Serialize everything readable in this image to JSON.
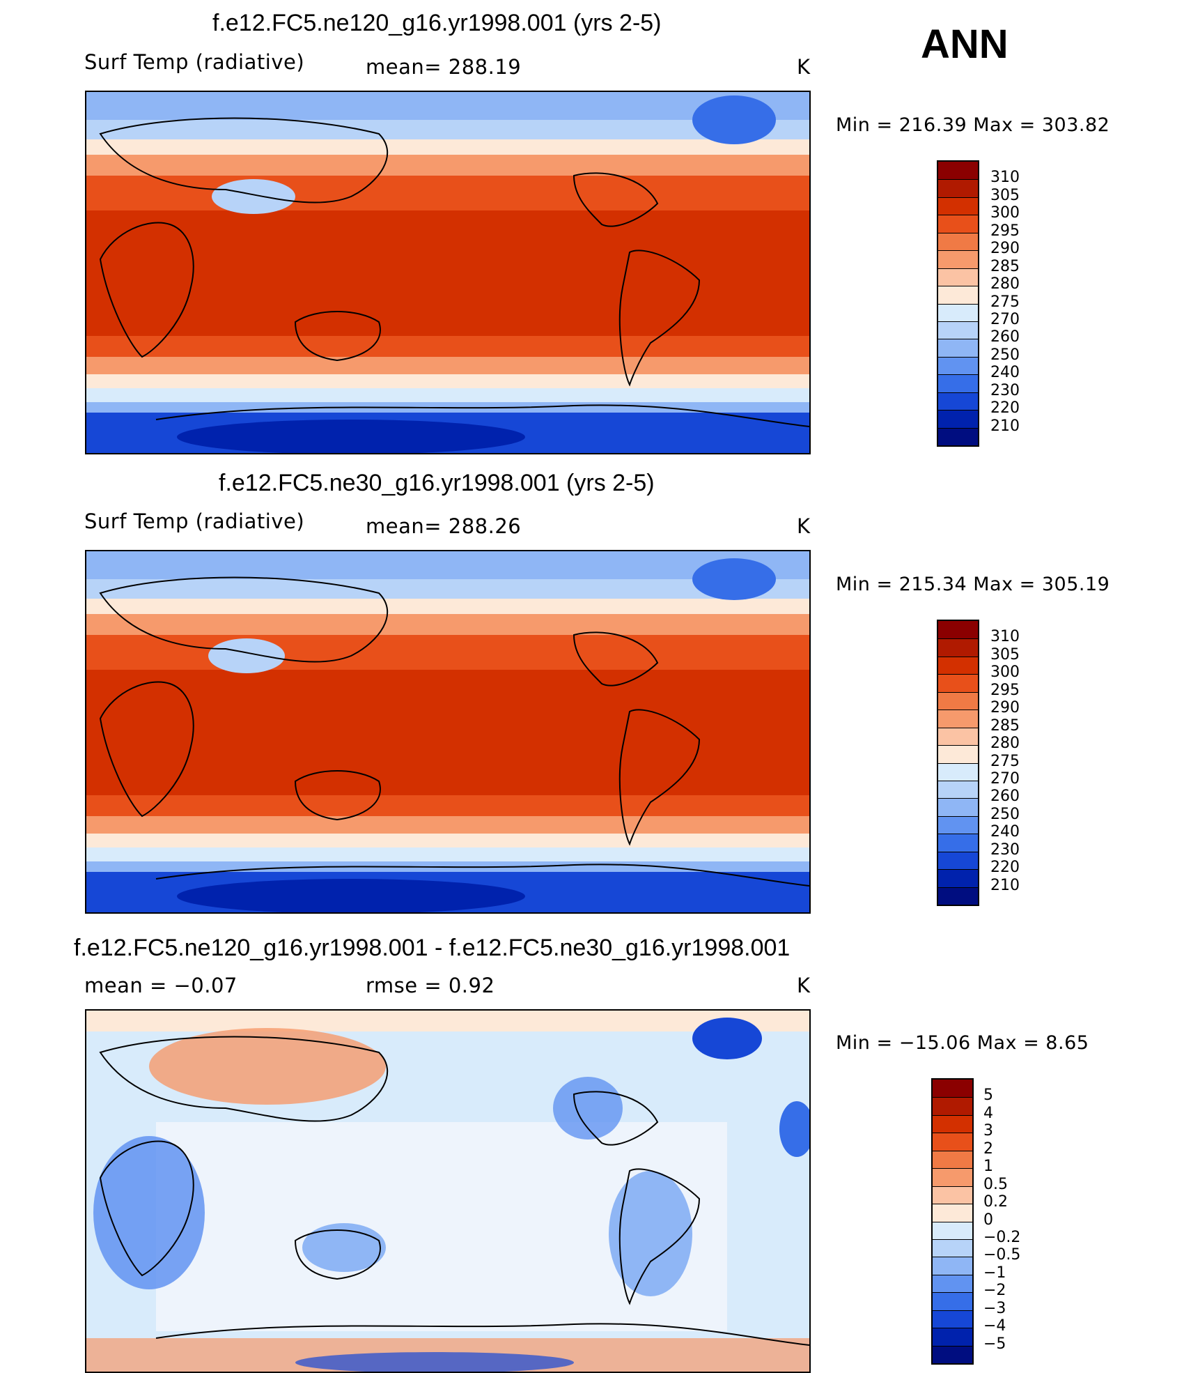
{
  "season": "ANN",
  "panels": [
    {
      "title": "f.e12.FC5.ne120_g16.yr1998.001 (yrs 2-5)",
      "left_label": "Surf Temp (radiative)",
      "center_label": "mean=  288.19",
      "units": "K",
      "minmax": "Min  =  216.39  Max  =  303.82",
      "colorbar": {
        "labels": [
          "310",
          "305",
          "300",
          "295",
          "290",
          "285",
          "280",
          "275",
          "270",
          "260",
          "250",
          "240",
          "230",
          "220",
          "210"
        ],
        "colors": [
          "#8b0000",
          "#b01a00",
          "#d33000",
          "#e8501a",
          "#f07a45",
          "#f69a6c",
          "#fbc3a4",
          "#fde9d8",
          "#d8ebfb",
          "#b7d3f8",
          "#8fb6f5",
          "#6193f1",
          "#366ee8",
          "#1647d6",
          "#0022ad",
          "#000d80"
        ]
      },
      "map_kind": "temperature"
    },
    {
      "title": "f.e12.FC5.ne30_g16.yr1998.001 (yrs 2-5)",
      "left_label": "Surf Temp (radiative)",
      "center_label": "mean=  288.26",
      "units": "K",
      "minmax": "Min  =  215.34  Max  =  305.19",
      "colorbar": {
        "labels": [
          "310",
          "305",
          "300",
          "295",
          "290",
          "285",
          "280",
          "275",
          "270",
          "260",
          "250",
          "240",
          "230",
          "220",
          "210"
        ],
        "colors": [
          "#8b0000",
          "#b01a00",
          "#d33000",
          "#e8501a",
          "#f07a45",
          "#f69a6c",
          "#fbc3a4",
          "#fde9d8",
          "#d8ebfb",
          "#b7d3f8",
          "#8fb6f5",
          "#6193f1",
          "#366ee8",
          "#1647d6",
          "#0022ad",
          "#000d80"
        ]
      },
      "map_kind": "temperature"
    },
    {
      "title": "f.e12.FC5.ne120_g16.yr1998.001 - f.e12.FC5.ne30_g16.yr1998.001",
      "left_label": "mean  =    −0.07",
      "center_label": "rmse  =      0.92",
      "units": "K",
      "minmax": "Min  =  −15.06  Max  =      8.65",
      "colorbar": {
        "labels": [
          "5",
          "4",
          "3",
          "2",
          "1",
          "0.5",
          "0.2",
          "0",
          "−0.2",
          "−0.5",
          "−1",
          "−2",
          "−3",
          "−4",
          "−5"
        ],
        "colors": [
          "#8b0000",
          "#b01a00",
          "#d33000",
          "#e8501a",
          "#f07a45",
          "#f69a6c",
          "#fbc3a4",
          "#fde9d8",
          "#d8ebfb",
          "#b7d3f8",
          "#8fb6f5",
          "#6193f1",
          "#366ee8",
          "#1647d6",
          "#0022ad",
          "#000d80"
        ]
      },
      "map_kind": "difference"
    }
  ]
}
